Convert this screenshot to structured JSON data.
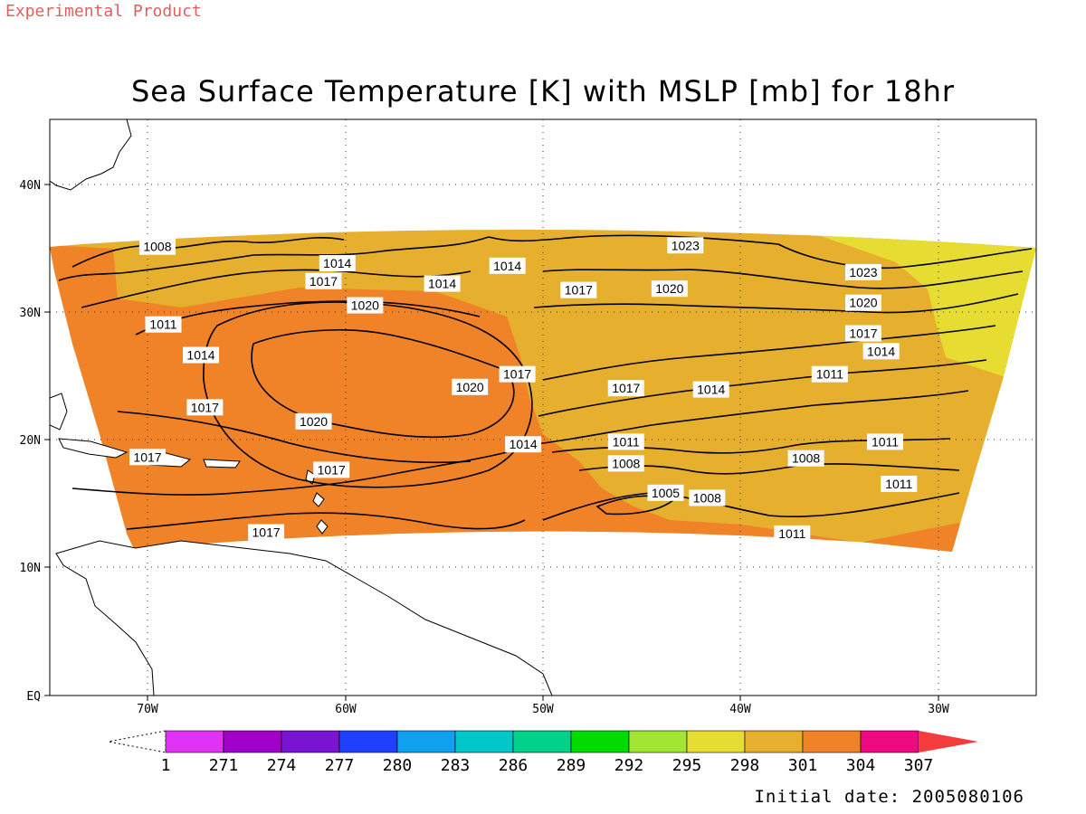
{
  "watermark": "Experimental Product",
  "title": "Sea Surface Temperature [K] with MSLP [mb] for 18hr",
  "footer": {
    "initial_date_label": "Initial date:",
    "initial_date": "2005080106"
  },
  "axes": {
    "lon_ticks": [
      "70W",
      "60W",
      "50W",
      "40W",
      "30W"
    ],
    "lat_ticks": [
      "EQ",
      "10N",
      "20N",
      "30N",
      "40N"
    ]
  },
  "colorbar": {
    "labels": [
      "1",
      "271",
      "274",
      "277",
      "280",
      "283",
      "286",
      "289",
      "292",
      "295",
      "298",
      "301",
      "304",
      "307"
    ],
    "colors": [
      "#e033f5",
      "#a000c8",
      "#7814d2",
      "#2040ff",
      "#10a0f0",
      "#00c8c8",
      "#00d28c",
      "#00dc00",
      "#a0e632",
      "#e6dc32",
      "#e6af2d",
      "#f08228",
      "#f00a82",
      "#f53c3c"
    ]
  },
  "contour_labels": [
    {
      "text": "1008",
      "lon": -69.5,
      "lat": 35.2
    },
    {
      "text": "1014",
      "lon": -60.4,
      "lat": 33.9
    },
    {
      "text": "1017",
      "lon": -61.1,
      "lat": 32.5
    },
    {
      "text": "1014",
      "lon": -55.1,
      "lat": 32.3
    },
    {
      "text": "1014",
      "lon": -51.8,
      "lat": 33.7
    },
    {
      "text": "1017",
      "lon": -48.2,
      "lat": 31.8
    },
    {
      "text": "1023",
      "lon": -42.8,
      "lat": 35.3
    },
    {
      "text": "1020",
      "lon": -43.6,
      "lat": 31.9
    },
    {
      "text": "1023",
      "lon": -33.8,
      "lat": 33.2
    },
    {
      "text": "1020",
      "lon": -33.8,
      "lat": 30.8
    },
    {
      "text": "1017",
      "lon": -33.8,
      "lat": 28.4
    },
    {
      "text": "1014",
      "lon": -32.9,
      "lat": 27.0
    },
    {
      "text": "1011",
      "lon": -35.5,
      "lat": 25.2
    },
    {
      "text": "1020",
      "lon": -59.0,
      "lat": 30.6
    },
    {
      "text": "1011",
      "lon": -69.2,
      "lat": 29.1
    },
    {
      "text": "1014",
      "lon": -67.3,
      "lat": 26.7
    },
    {
      "text": "1017",
      "lon": -67.1,
      "lat": 22.6
    },
    {
      "text": "1020",
      "lon": -53.7,
      "lat": 24.2
    },
    {
      "text": "1017",
      "lon": -51.3,
      "lat": 25.2
    },
    {
      "text": "1020",
      "lon": -61.6,
      "lat": 21.5
    },
    {
      "text": "1017",
      "lon": -45.8,
      "lat": 24.1
    },
    {
      "text": "1014",
      "lon": -41.5,
      "lat": 24.0
    },
    {
      "text": "1014",
      "lon": -51.0,
      "lat": 19.7
    },
    {
      "text": "1011",
      "lon": -45.8,
      "lat": 19.9
    },
    {
      "text": "1008",
      "lon": -45.8,
      "lat": 18.2
    },
    {
      "text": "1017",
      "lon": -70.0,
      "lat": 18.7
    },
    {
      "text": "1017",
      "lon": -60.7,
      "lat": 17.7
    },
    {
      "text": "1005",
      "lon": -43.8,
      "lat": 15.9
    },
    {
      "text": "1008",
      "lon": -41.7,
      "lat": 15.5
    },
    {
      "text": "1008",
      "lon": -36.7,
      "lat": 18.6
    },
    {
      "text": "1011",
      "lon": -32.7,
      "lat": 19.9
    },
    {
      "text": "1011",
      "lon": -32.0,
      "lat": 16.6
    },
    {
      "text": "1011",
      "lon": -37.4,
      "lat": 12.7
    },
    {
      "text": "1017",
      "lon": -64.0,
      "lat": 12.8
    }
  ]
}
